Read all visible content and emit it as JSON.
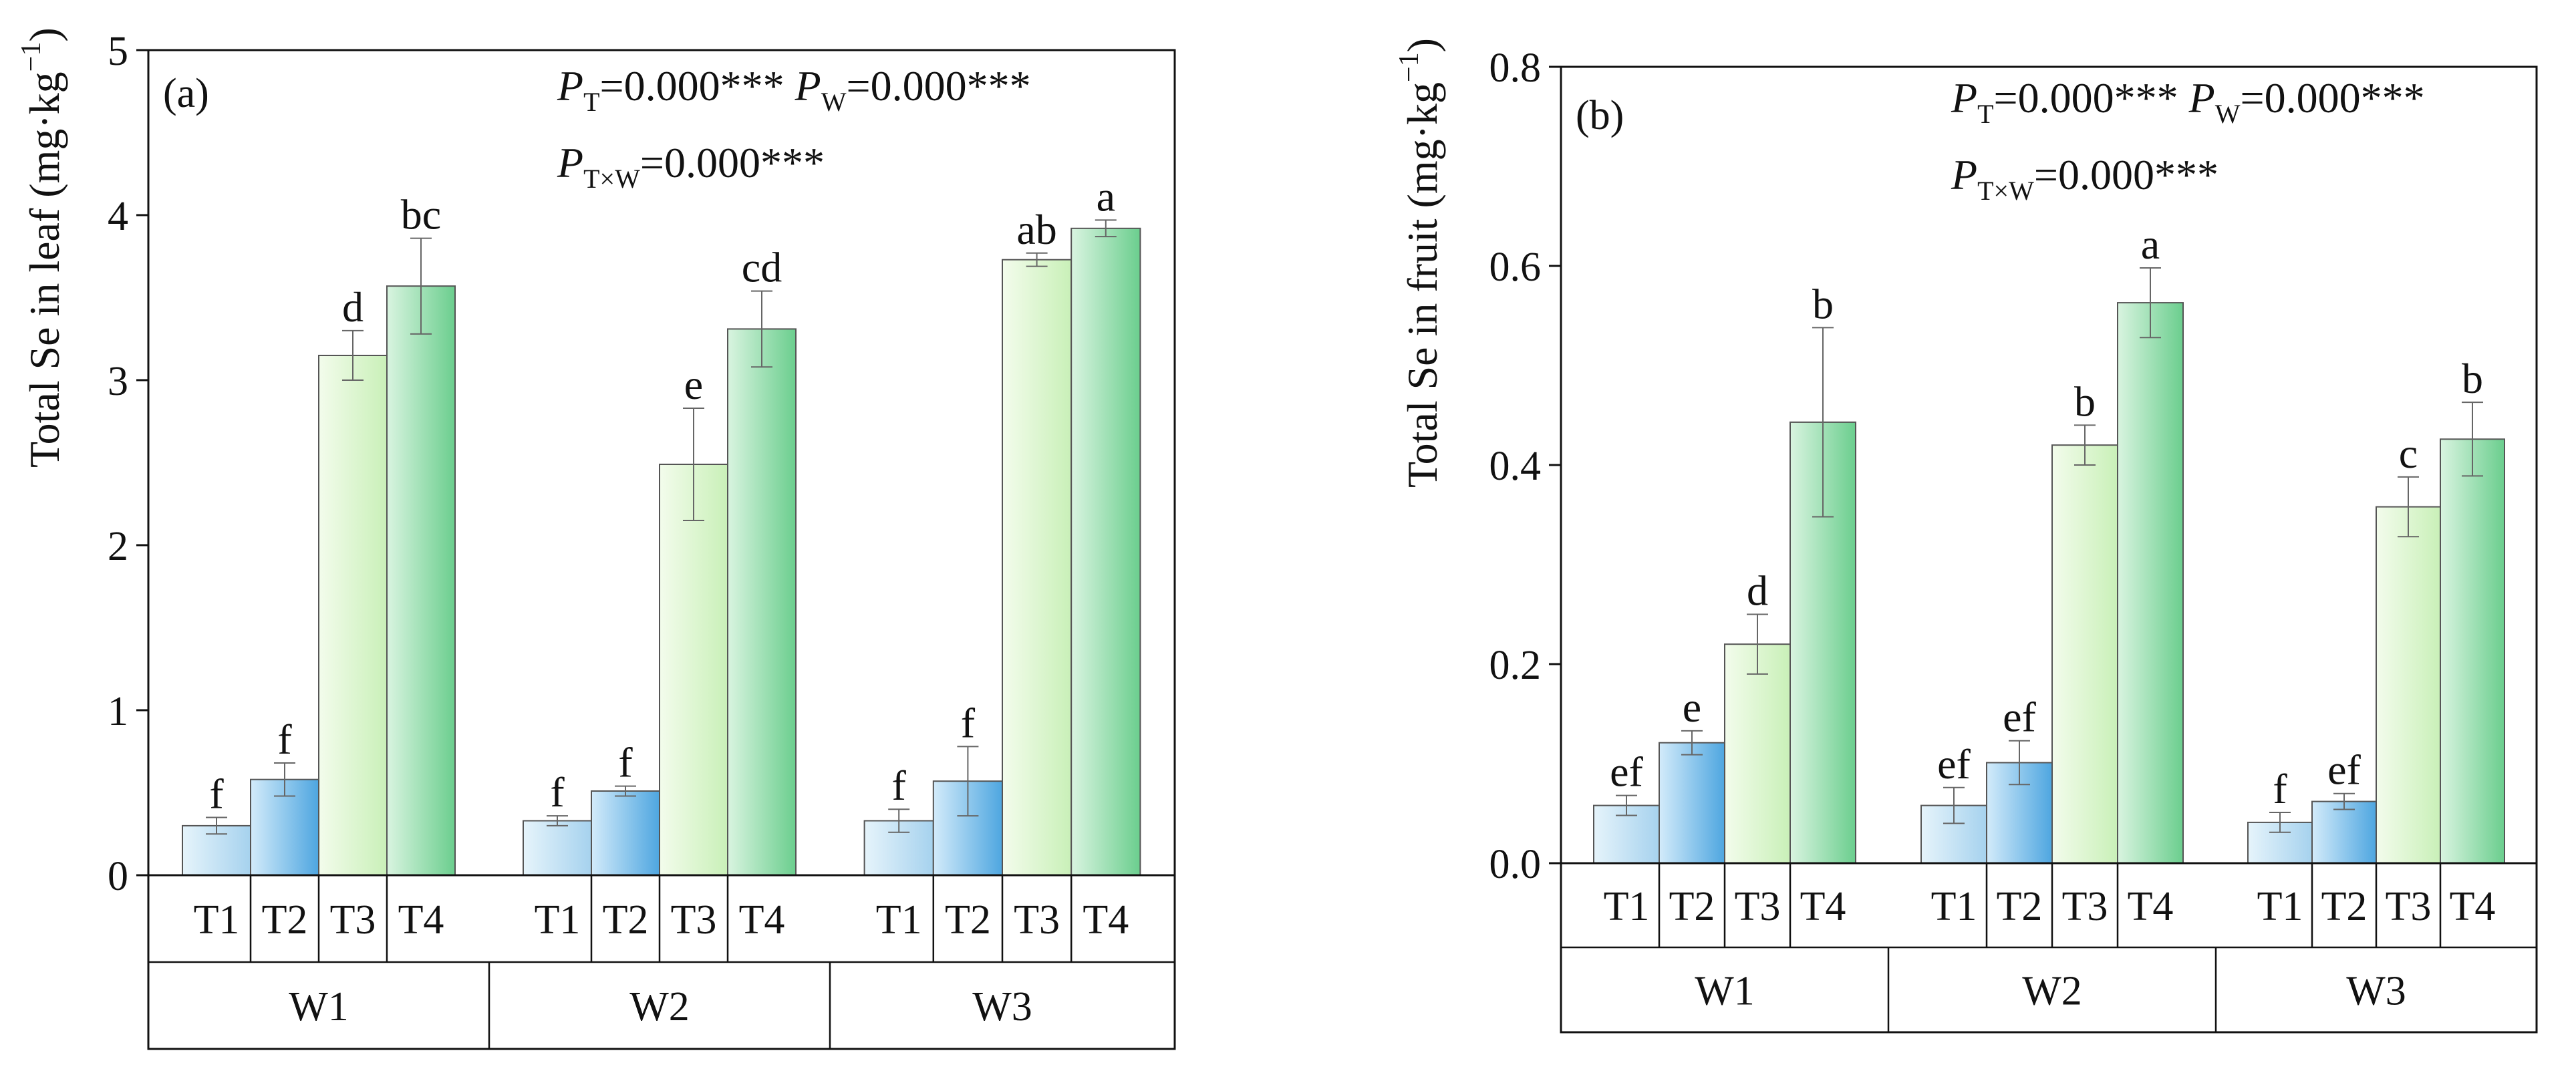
{
  "chart_data": [
    {
      "type": "bar",
      "panel_label": "(a)",
      "ylabel_main": "Total Se in leaf (mg·kg",
      "ylabel_sup": "−1",
      "ylabel_close": ")",
      "ylim": [
        0,
        5
      ],
      "yticks": [
        "0",
        "1",
        "2",
        "3",
        "4",
        "5"
      ],
      "groups": [
        "W1",
        "W2",
        "W3"
      ],
      "categories": [
        "T1",
        "T2",
        "T3",
        "T4"
      ],
      "values": [
        [
          0.3,
          0.58,
          3.15,
          3.57
        ],
        [
          0.33,
          0.51,
          2.49,
          3.31
        ],
        [
          0.33,
          0.57,
          3.73,
          3.92
        ]
      ],
      "errors": [
        [
          0.05,
          0.1,
          0.15,
          0.29
        ],
        [
          0.03,
          0.03,
          0.34,
          0.23
        ],
        [
          0.07,
          0.21,
          0.04,
          0.05
        ]
      ],
      "letters": [
        [
          "f",
          "f",
          "d",
          "bc"
        ],
        [
          "f",
          "f",
          "e",
          "cd"
        ],
        [
          "f",
          "f",
          "ab",
          "a"
        ]
      ],
      "stats": {
        "line1": [
          {
            "main": "P",
            "sub": "T",
            "val": "=0.000***"
          },
          {
            "main": " P",
            "sub": "W",
            "val": "=0.000***"
          }
        ],
        "line2": [
          {
            "main": "P",
            "sub": "T×W",
            "val": "=0.000***"
          }
        ]
      }
    },
    {
      "type": "bar",
      "panel_label": "(b)",
      "ylabel_main": "Total Se in fruit (mg·kg",
      "ylabel_sup": "−1",
      "ylabel_close": ")",
      "ylim": [
        0,
        0.8
      ],
      "yticks": [
        "0.0",
        "0.2",
        "0.4",
        "0.6",
        "0.8"
      ],
      "groups": [
        "W1",
        "W2",
        "W3"
      ],
      "categories": [
        "T1",
        "T2",
        "T3",
        "T4"
      ],
      "values": [
        [
          0.058,
          0.121,
          0.22,
          0.443
        ],
        [
          0.058,
          0.101,
          0.42,
          0.563
        ],
        [
          0.041,
          0.062,
          0.358,
          0.426
        ]
      ],
      "errors": [
        [
          0.01,
          0.012,
          0.03,
          0.095
        ],
        [
          0.018,
          0.022,
          0.02,
          0.035
        ],
        [
          0.01,
          0.008,
          0.03,
          0.037
        ]
      ],
      "letters": [
        [
          "ef",
          "e",
          "d",
          "b"
        ],
        [
          "ef",
          "ef",
          "b",
          "a"
        ],
        [
          "f",
          "ef",
          "c",
          "b"
        ]
      ],
      "stats": {
        "line1": [
          {
            "main": "P",
            "sub": "T",
            "val": "=0.000***"
          },
          {
            "main": " P",
            "sub": "W",
            "val": "=0.000***"
          }
        ],
        "line2": [
          {
            "main": "P",
            "sub": "T×W",
            "val": "=0.000***"
          }
        ]
      }
    }
  ],
  "colors": {
    "T1_light": "#e6f4fb",
    "T1_dark": "#a6d2ee",
    "T2_light": "#d3ebfa",
    "T2_dark": "#4ea6e0",
    "T3_light": "#f3fcec",
    "T3_dark": "#c9f0b8",
    "T4_light": "#d9f4e0",
    "T4_dark": "#6bce8e"
  }
}
